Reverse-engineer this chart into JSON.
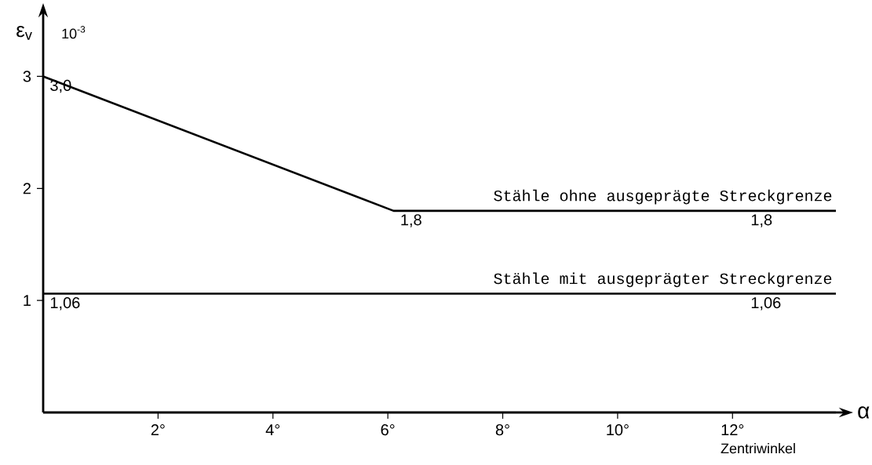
{
  "chart_data": {
    "type": "line",
    "xlabel": "α",
    "ylabel": "ε$_{v}$",
    "annotations": [
      "10$^{-3}$",
      "Zentriwinkel"
    ],
    "xlim": [
      0,
      13.8
    ],
    "ylim": [
      0,
      3.5
    ],
    "xticks": [
      {
        "value": 2,
        "label": "2°"
      },
      {
        "value": 4,
        "label": "4°"
      },
      {
        "value": 6,
        "label": "6°"
      },
      {
        "value": 8,
        "label": "8°"
      },
      {
        "value": 10,
        "label": "10°"
      },
      {
        "value": 12,
        "label": "12°"
      }
    ],
    "yticks": [
      1,
      2,
      3
    ],
    "series": [
      {
        "name": "Stähle ohne ausgeprägte Streckgrenze",
        "color": "#000000",
        "x": [
          0,
          6.1,
          12.2,
          13.8
        ],
        "values": [
          3.0,
          1.8,
          1.8,
          1.8
        ],
        "value_labels": [
          "3,0",
          "1,8",
          "1,8",
          null
        ]
      },
      {
        "name": "Stähle mit ausgeprägter Streckgrenze",
        "color": "#000000",
        "x": [
          0,
          12.2,
          13.8
        ],
        "values": [
          1.06,
          1.06,
          1.06
        ],
        "value_labels": [
          "1,06",
          "1,06",
          null
        ]
      }
    ]
  }
}
